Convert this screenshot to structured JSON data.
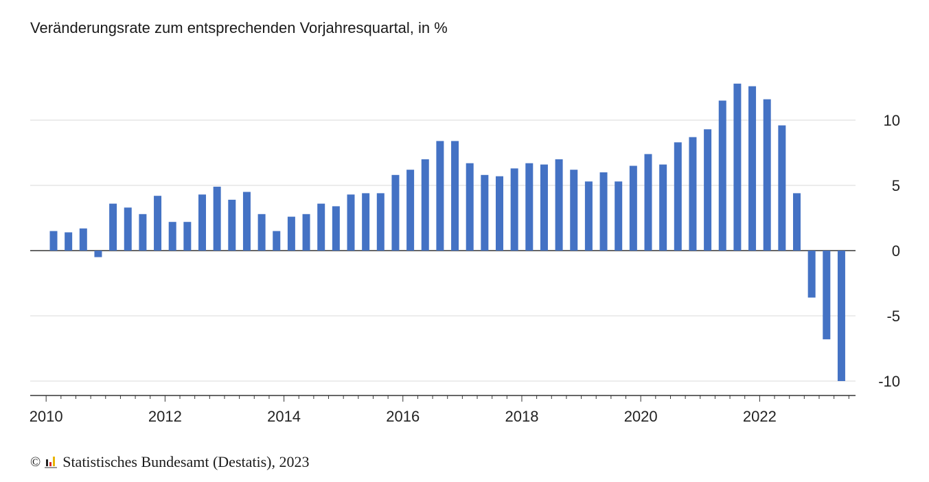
{
  "chart_data": {
    "type": "bar",
    "title": "Veränderungsrate zum entsprechenden Vorjahresquartal, in %",
    "x_tick_labels": [
      "2010",
      "2012",
      "2014",
      "2016",
      "2018",
      "2020",
      "2022"
    ],
    "y_ticks": [
      10,
      5,
      0,
      -5,
      -10
    ],
    "ylim": [
      -11,
      13
    ],
    "grid": true,
    "bar_color": "#4472c4",
    "start_year": 2010,
    "periods_per_year": 4,
    "values": [
      1.5,
      1.4,
      1.7,
      -0.5,
      3.6,
      3.3,
      2.8,
      4.2,
      2.2,
      2.2,
      4.3,
      4.9,
      3.9,
      4.5,
      2.8,
      1.5,
      2.6,
      2.8,
      3.6,
      3.4,
      4.3,
      4.4,
      4.4,
      5.8,
      6.2,
      7.0,
      8.4,
      8.4,
      6.7,
      5.8,
      5.7,
      6.3,
      6.7,
      6.6,
      7.0,
      6.2,
      5.3,
      6.0,
      5.3,
      6.5,
      7.4,
      6.6,
      8.3,
      8.7,
      9.3,
      11.5,
      12.8,
      12.6,
      11.6,
      9.6,
      4.4,
      -3.6,
      -6.8,
      -10.0
    ]
  },
  "source": {
    "copyright_symbol": "©",
    "text": "Statistisches Bundesamt (Destatis), 2023"
  }
}
